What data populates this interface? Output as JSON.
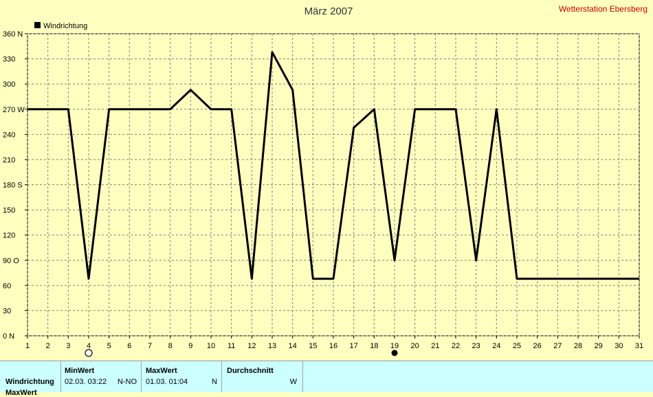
{
  "title": "März 2007",
  "station": "Wetterstation Ebersberg",
  "colors": {
    "background": "#ffffc0",
    "line": "#000000",
    "grid": "#808080",
    "station": "#d00000",
    "stats_bg": "#ccffff"
  },
  "chart_data": {
    "type": "line",
    "legend": "Windrichtung",
    "legend_placement": "top-left",
    "grid": true,
    "ylim": [
      0,
      360
    ],
    "xlim": [
      1,
      31
    ],
    "y_ticks": [
      {
        "value": 0,
        "label": "0  N"
      },
      {
        "value": 30,
        "label": "30"
      },
      {
        "value": 60,
        "label": "60"
      },
      {
        "value": 90,
        "label": "90  O"
      },
      {
        "value": 120,
        "label": "120"
      },
      {
        "value": 150,
        "label": "150"
      },
      {
        "value": 180,
        "label": "180 S"
      },
      {
        "value": 210,
        "label": "210"
      },
      {
        "value": 240,
        "label": "240"
      },
      {
        "value": 270,
        "label": "270 W"
      },
      {
        "value": 300,
        "label": "300"
      },
      {
        "value": 330,
        "label": "330"
      },
      {
        "value": 360,
        "label": "360 N"
      }
    ],
    "x_ticks": [
      "1",
      "2",
      "3",
      "4",
      "5",
      "6",
      "7",
      "8",
      "9",
      "10",
      "11",
      "12",
      "13",
      "14",
      "15",
      "16",
      "17",
      "18",
      "19",
      "20",
      "21",
      "22",
      "23",
      "24",
      "25",
      "26",
      "27",
      "28",
      "29",
      "30",
      "31"
    ],
    "series": [
      {
        "name": "Windrichtung",
        "points": [
          [
            1,
            270
          ],
          [
            2,
            270
          ],
          [
            3,
            270
          ],
          [
            4,
            68
          ],
          [
            5,
            270
          ],
          [
            6,
            270
          ],
          [
            7,
            270
          ],
          [
            8,
            270
          ],
          [
            9,
            293
          ],
          [
            10,
            270
          ],
          [
            11,
            270
          ],
          [
            12,
            68
          ],
          [
            13,
            338
          ],
          [
            14,
            293
          ],
          [
            15,
            68
          ],
          [
            16,
            68
          ],
          [
            17,
            248
          ],
          [
            18,
            270
          ],
          [
            19,
            90
          ],
          [
            20,
            270
          ],
          [
            21,
            270
          ],
          [
            22,
            270
          ],
          [
            23,
            90
          ],
          [
            24,
            270
          ],
          [
            25,
            68
          ],
          [
            26,
            68
          ],
          [
            27,
            68
          ],
          [
            28,
            68
          ],
          [
            29,
            68
          ],
          [
            30,
            68
          ],
          [
            31,
            68
          ]
        ]
      }
    ],
    "markers": [
      {
        "day": 4,
        "icon": "full-moon-icon"
      },
      {
        "day": 19,
        "icon": "new-moon-icon"
      }
    ]
  },
  "stats": {
    "row_label": "Windrichtung",
    "row_label_2": "MaxWert",
    "min": {
      "header": "MinWert",
      "date": "02.03.  03:22",
      "dir": "N-NO"
    },
    "max": {
      "header": "MaxWert",
      "date": "01.03.  01:04",
      "dir": "N"
    },
    "avg": {
      "header": "Durchschnitt",
      "dir": "W"
    }
  }
}
